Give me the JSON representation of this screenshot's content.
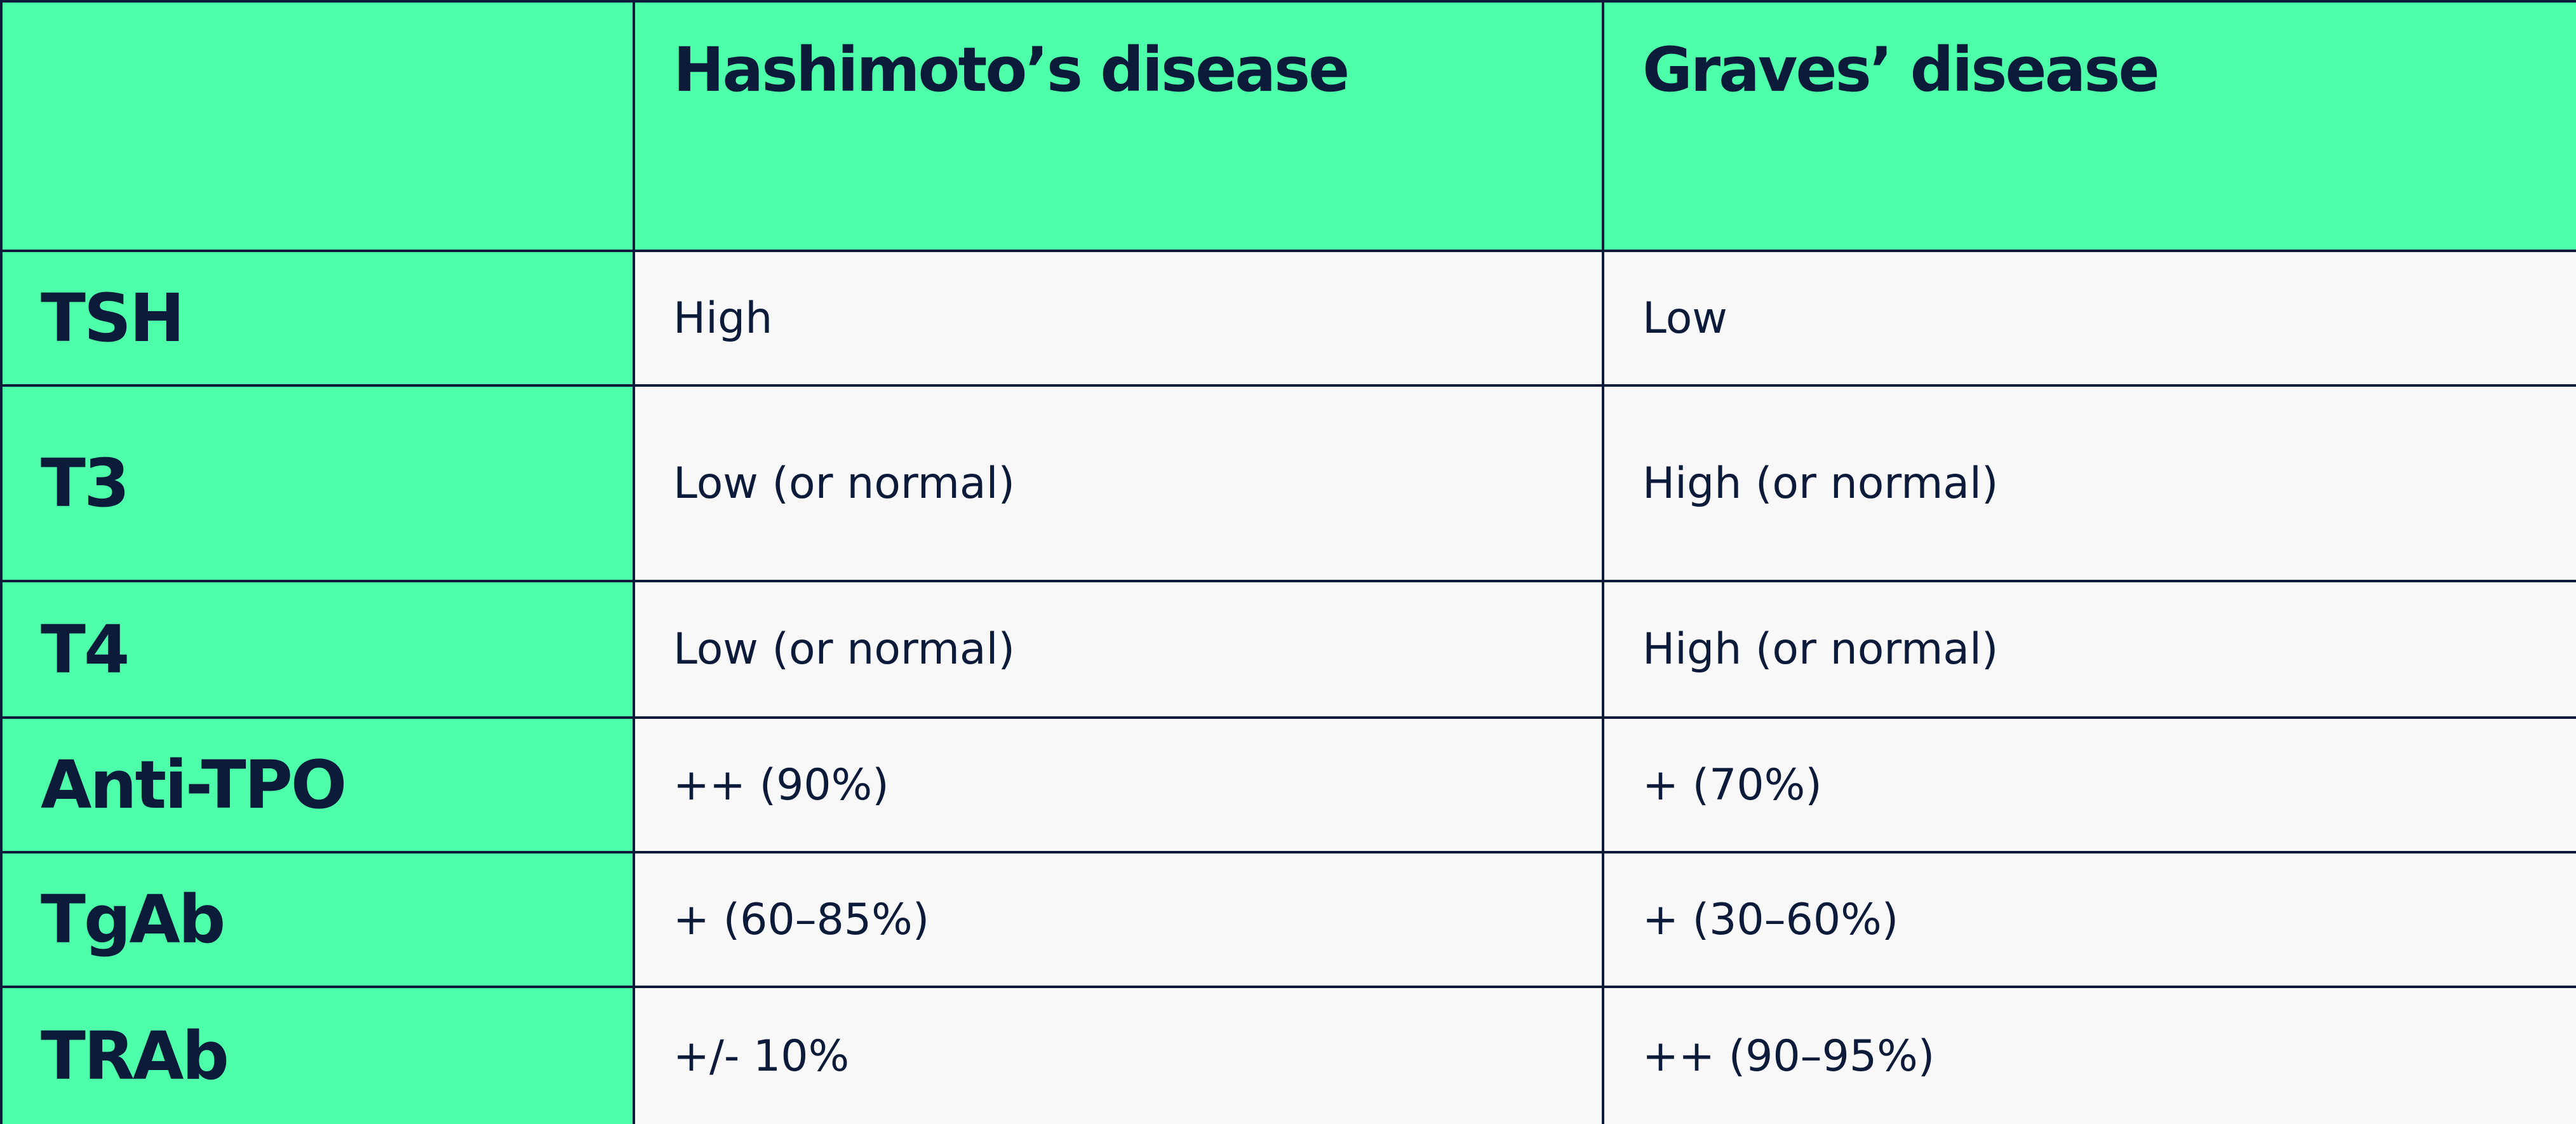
{
  "table": {
    "columns": [
      "Hashimoto’s disease",
      "Graves’ disease"
    ],
    "rows": [
      {
        "label": "TSH",
        "values": [
          "High",
          "Low"
        ]
      },
      {
        "label": "T3",
        "values": [
          "Low (or normal)",
          "High (or normal)"
        ]
      },
      {
        "label": "T4",
        "values": [
          "Low (or normal)",
          "High (or normal)"
        ]
      },
      {
        "label": "Anti-TPO",
        "values": [
          "++ (90%)",
          "+ (70%)"
        ]
      },
      {
        "label": "TgAb",
        "values": [
          "+ (60–85%)",
          "+ (30–60%)"
        ]
      },
      {
        "label": "TRAb",
        "values": [
          "+/- 10%",
          "++ (90–95%)"
        ]
      }
    ]
  }
}
